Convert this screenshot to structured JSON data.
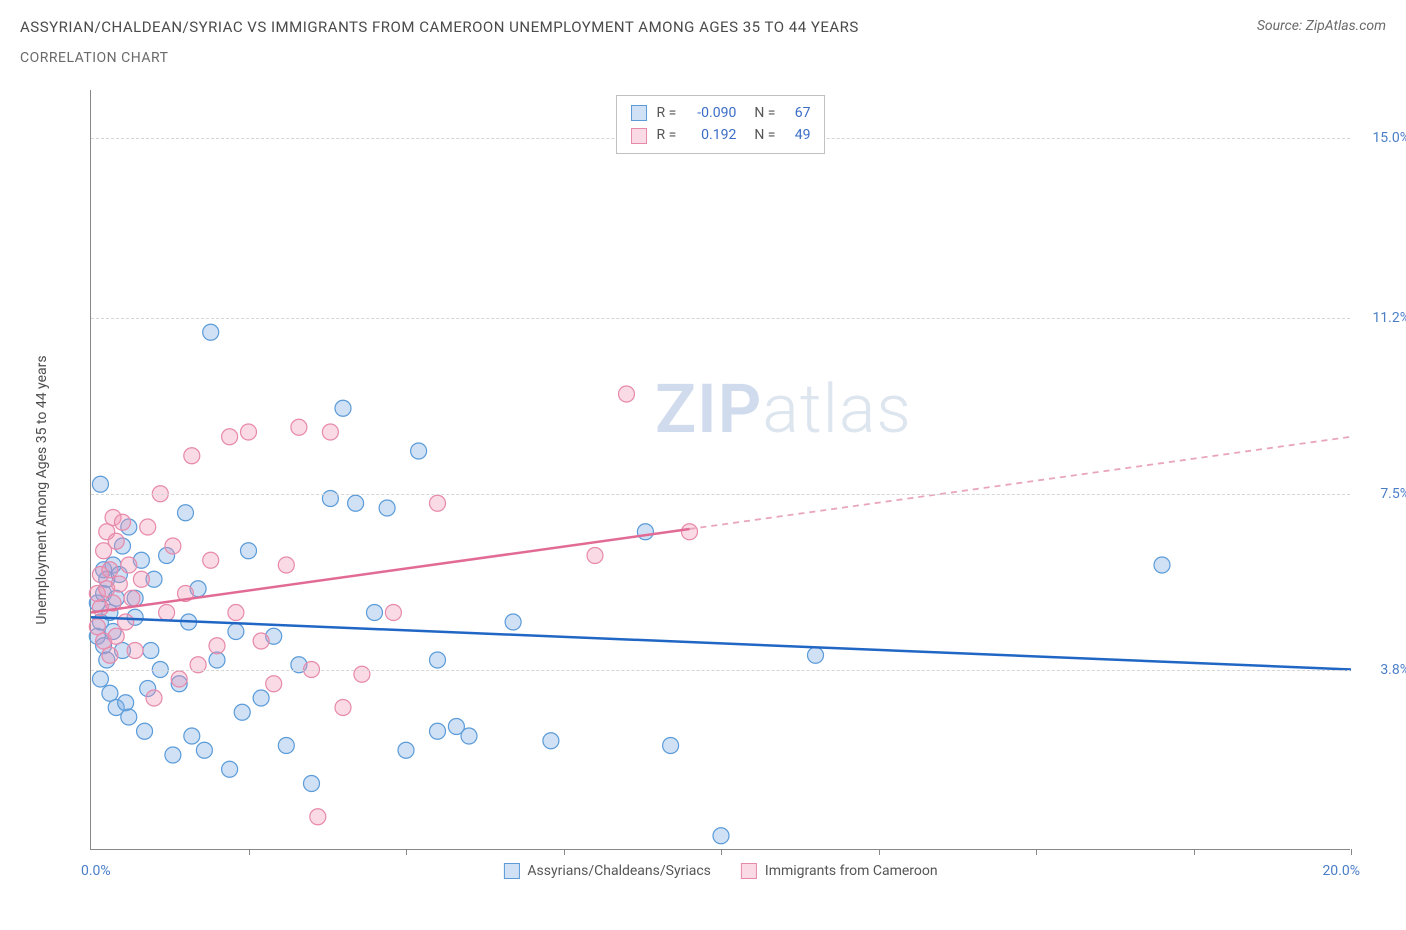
{
  "header": {
    "title": "ASSYRIAN/CHALDEAN/SYRIAC VS IMMIGRANTS FROM CAMEROON UNEMPLOYMENT AMONG AGES 35 TO 44 YEARS",
    "subtitle": "CORRELATION CHART",
    "source": "Source: ZipAtlas.com"
  },
  "watermark": {
    "zip": "ZIP",
    "atlas": "atlas"
  },
  "chart": {
    "type": "scatter",
    "yaxis_label": "Unemployment Among Ages 35 to 44 years",
    "xlim": [
      0,
      20
    ],
    "ylim": [
      0,
      16
    ],
    "xtick_positions": [
      2.5,
      5,
      7.5,
      10,
      12.5,
      15,
      17.5,
      20
    ],
    "xaxis_min_label": "0.0%",
    "xaxis_max_label": "20.0%",
    "yticks": [
      {
        "value": 3.8,
        "label": "3.8%"
      },
      {
        "value": 7.5,
        "label": "7.5%"
      },
      {
        "value": 11.2,
        "label": "11.2%"
      },
      {
        "value": 15.0,
        "label": "15.0%"
      }
    ],
    "gridlines_y": [
      3.8,
      7.5,
      11.2,
      15.0
    ],
    "background_color": "#ffffff",
    "grid_color": "#d5d5d5",
    "axis_color": "#888888",
    "series": [
      {
        "name": "Assyrians/Chaldeans/Syriacs",
        "fill_color": "rgba(120,170,230,0.35)",
        "stroke_color": "#5a9bd8",
        "line_color": "#2066c4",
        "line_dash_color": "#2066c4",
        "marker_radius": 8,
        "R": "-0.090",
        "N": "67",
        "trend": {
          "x1": 0,
          "y1": 4.9,
          "x2": 20,
          "y2": 3.8,
          "solid_until_x": 20
        },
        "points": [
          [
            0.1,
            5.2
          ],
          [
            0.1,
            4.5
          ],
          [
            0.15,
            7.7
          ],
          [
            0.15,
            4.8
          ],
          [
            0.15,
            3.6
          ],
          [
            0.2,
            5.9
          ],
          [
            0.2,
            5.4
          ],
          [
            0.2,
            4.3
          ],
          [
            0.25,
            5.7
          ],
          [
            0.25,
            4.0
          ],
          [
            0.3,
            5.0
          ],
          [
            0.3,
            3.3
          ],
          [
            0.35,
            6.0
          ],
          [
            0.35,
            4.6
          ],
          [
            0.4,
            5.3
          ],
          [
            0.4,
            3.0
          ],
          [
            0.45,
            5.8
          ],
          [
            0.5,
            6.4
          ],
          [
            0.5,
            4.2
          ],
          [
            0.55,
            3.1
          ],
          [
            0.6,
            6.8
          ],
          [
            0.6,
            2.8
          ],
          [
            0.7,
            5.3
          ],
          [
            0.7,
            4.9
          ],
          [
            0.8,
            6.1
          ],
          [
            0.85,
            2.5
          ],
          [
            0.9,
            3.4
          ],
          [
            0.95,
            4.2
          ],
          [
            1.0,
            5.7
          ],
          [
            1.1,
            3.8
          ],
          [
            1.2,
            6.2
          ],
          [
            1.3,
            2.0
          ],
          [
            1.4,
            3.5
          ],
          [
            1.5,
            7.1
          ],
          [
            1.55,
            4.8
          ],
          [
            1.6,
            2.4
          ],
          [
            1.7,
            5.5
          ],
          [
            1.8,
            2.1
          ],
          [
            1.9,
            10.9
          ],
          [
            2.0,
            4.0
          ],
          [
            2.2,
            1.7
          ],
          [
            2.3,
            4.6
          ],
          [
            2.4,
            2.9
          ],
          [
            2.5,
            6.3
          ],
          [
            2.7,
            3.2
          ],
          [
            2.9,
            4.5
          ],
          [
            3.1,
            2.2
          ],
          [
            3.3,
            3.9
          ],
          [
            3.5,
            1.4
          ],
          [
            3.8,
            7.4
          ],
          [
            4.0,
            9.3
          ],
          [
            4.2,
            7.3
          ],
          [
            4.5,
            5.0
          ],
          [
            4.7,
            7.2
          ],
          [
            5.0,
            2.1
          ],
          [
            5.2,
            8.4
          ],
          [
            5.5,
            4.0
          ],
          [
            5.5,
            2.5
          ],
          [
            5.8,
            2.6
          ],
          [
            6.0,
            2.4
          ],
          [
            6.7,
            4.8
          ],
          [
            7.3,
            2.3
          ],
          [
            8.8,
            6.7
          ],
          [
            9.2,
            2.2
          ],
          [
            10.0,
            0.3
          ],
          [
            11.5,
            4.1
          ],
          [
            17.0,
            6.0
          ]
        ]
      },
      {
        "name": "Immigrants from Cameroon",
        "fill_color": "rgba(240,150,180,0.35)",
        "stroke_color": "#e789aa",
        "line_color": "#e26b95",
        "line_dash_color": "#e8a5bd",
        "marker_radius": 8,
        "R": "0.192",
        "N": "49",
        "trend": {
          "x1": 0,
          "y1": 5.0,
          "x2": 20,
          "y2": 8.7,
          "solid_until_x": 9.5
        },
        "points": [
          [
            0.1,
            5.4
          ],
          [
            0.1,
            4.7
          ],
          [
            0.15,
            5.8
          ],
          [
            0.15,
            5.1
          ],
          [
            0.2,
            6.3
          ],
          [
            0.2,
            4.4
          ],
          [
            0.25,
            6.7
          ],
          [
            0.25,
            5.5
          ],
          [
            0.3,
            5.9
          ],
          [
            0.3,
            4.1
          ],
          [
            0.35,
            7.0
          ],
          [
            0.35,
            5.2
          ],
          [
            0.4,
            6.5
          ],
          [
            0.4,
            4.5
          ],
          [
            0.45,
            5.6
          ],
          [
            0.5,
            6.9
          ],
          [
            0.55,
            4.8
          ],
          [
            0.6,
            6.0
          ],
          [
            0.65,
            5.3
          ],
          [
            0.7,
            4.2
          ],
          [
            0.8,
            5.7
          ],
          [
            0.9,
            6.8
          ],
          [
            1.0,
            3.2
          ],
          [
            1.1,
            7.5
          ],
          [
            1.2,
            5.0
          ],
          [
            1.3,
            6.4
          ],
          [
            1.4,
            3.6
          ],
          [
            1.5,
            5.4
          ],
          [
            1.6,
            8.3
          ],
          [
            1.7,
            3.9
          ],
          [
            1.9,
            6.1
          ],
          [
            2.0,
            4.3
          ],
          [
            2.2,
            8.7
          ],
          [
            2.3,
            5.0
          ],
          [
            2.5,
            8.8
          ],
          [
            2.7,
            4.4
          ],
          [
            2.9,
            3.5
          ],
          [
            3.1,
            6.0
          ],
          [
            3.3,
            8.9
          ],
          [
            3.5,
            3.8
          ],
          [
            3.6,
            0.7
          ],
          [
            3.8,
            8.8
          ],
          [
            4.0,
            3.0
          ],
          [
            4.3,
            3.7
          ],
          [
            4.8,
            5.0
          ],
          [
            5.5,
            7.3
          ],
          [
            8.0,
            6.2
          ],
          [
            8.5,
            9.6
          ],
          [
            9.5,
            6.7
          ]
        ]
      }
    ],
    "legend_top": {
      "rows": [
        {
          "swatch_fill": "rgba(120,170,230,0.35)",
          "swatch_stroke": "#5a9bd8",
          "R_label": "R =",
          "R": "-0.090",
          "N_label": "N =",
          "N": "67"
        },
        {
          "swatch_fill": "rgba(240,150,180,0.35)",
          "swatch_stroke": "#e789aa",
          "R_label": "R =",
          "R": "0.192",
          "N_label": "N =",
          "N": "49"
        }
      ]
    },
    "legend_bottom": [
      {
        "swatch_fill": "rgba(120,170,230,0.35)",
        "swatch_stroke": "#5a9bd8",
        "label": "Assyrians/Chaldeans/Syriacs"
      },
      {
        "swatch_fill": "rgba(240,150,180,0.35)",
        "swatch_stroke": "#e789aa",
        "label": "Immigrants from Cameroon"
      }
    ]
  }
}
